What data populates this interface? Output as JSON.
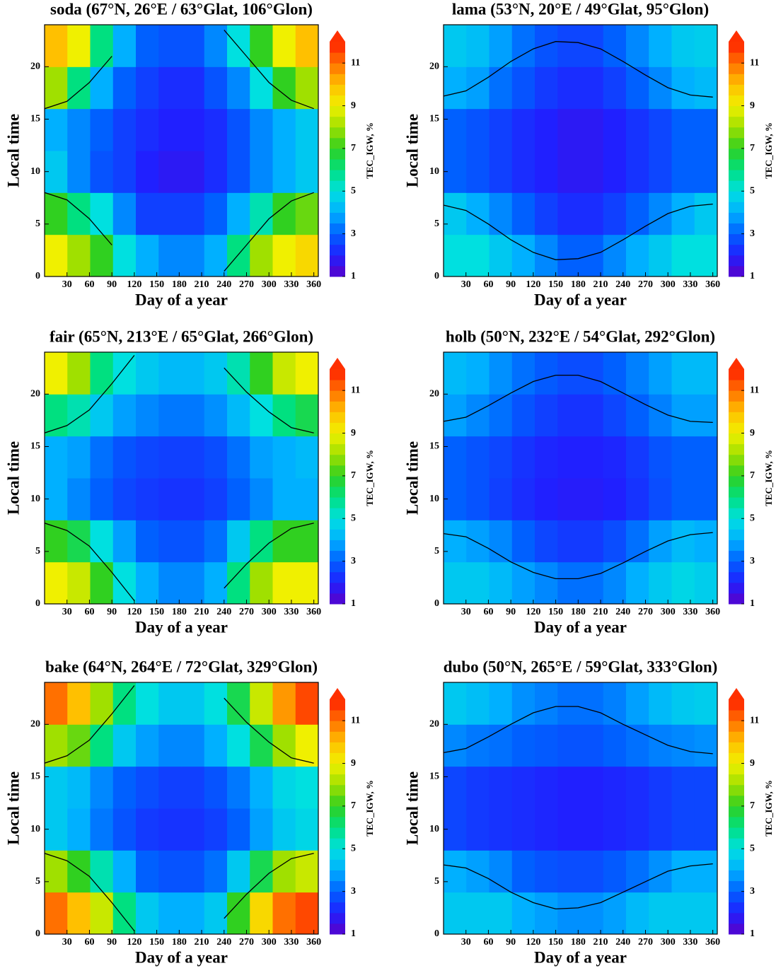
{
  "chart_data": [
    {
      "type": "heatmap",
      "title": "soda (67°N, 26°E / 63°Glat, 106°Glon)",
      "xlabel": "Day of a year",
      "ylabel": "Local time",
      "colorbar_label": "TEC_IGW, %",
      "xlim": [
        0,
        366
      ],
      "ylim": [
        0,
        24
      ],
      "xticks": [
        30,
        60,
        90,
        120,
        150,
        180,
        210,
        240,
        270,
        300,
        330,
        360
      ],
      "yticks": [
        0,
        5,
        10,
        15,
        20
      ],
      "xbins": [
        0,
        30.5,
        61,
        91.5,
        122,
        152.5,
        183,
        213.5,
        244,
        274.5,
        305,
        335.5,
        366
      ],
      "ybins": [
        0,
        4,
        8,
        12,
        16,
        20,
        24
      ],
      "values": [
        [
          9,
          8,
          7,
          5,
          4,
          3.5,
          3.5,
          4,
          6,
          8,
          9,
          9.5
        ],
        [
          7,
          6,
          5,
          3.5,
          2.5,
          2.5,
          2.5,
          3,
          4,
          5.5,
          7,
          7.5
        ],
        [
          4.5,
          3.5,
          2.8,
          2.5,
          2,
          1.8,
          1.8,
          2.2,
          2.8,
          3.5,
          4,
          4.5
        ],
        [
          4,
          3.5,
          3,
          2.5,
          2.2,
          2,
          2,
          2.2,
          2.8,
          3.5,
          4,
          4.5
        ],
        [
          8,
          6,
          4,
          3,
          2.5,
          2.2,
          2.2,
          2.8,
          3.5,
          5,
          7,
          8
        ],
        [
          10,
          9,
          6,
          4,
          3,
          2.8,
          2.8,
          3.5,
          5,
          7,
          9,
          10
        ]
      ],
      "clim": [
        1,
        12
      ],
      "cticks": [
        1,
        3,
        5,
        7,
        9,
        11
      ],
      "colormap": [
        "#5a00c8",
        "#2020ff",
        "#0060ff",
        "#00b0ff",
        "#00e0e0",
        "#00e080",
        "#30d020",
        "#a0e000",
        "#f0f000",
        "#ffc000",
        "#ff7000",
        "#ff2000"
      ],
      "extend_color": "#ff3000",
      "curve_x": [
        0,
        30,
        60,
        90,
        120,
        150,
        180,
        210,
        240,
        270,
        300,
        330,
        360
      ],
      "curves": [
        {
          "color": "#000000",
          "values": [
            8,
            7.3,
            5.5,
            3,
            null,
            null,
            null,
            null,
            0.5,
            3,
            5.5,
            7.2,
            8
          ]
        },
        {
          "color": "#000000",
          "values": [
            16,
            16.7,
            18.5,
            21,
            null,
            null,
            null,
            null,
            23.5,
            21,
            18.5,
            16.8,
            16
          ]
        }
      ]
    },
    {
      "type": "heatmap",
      "title": "lama (53°N, 20°E / 49°Glat, 95°Glon)",
      "xlabel": "Day of a year",
      "ylabel": "Local time",
      "colorbar_label": "TEC_IGW, %",
      "xlim": [
        0,
        366
      ],
      "ylim": [
        0,
        24
      ],
      "xticks": [
        30,
        60,
        90,
        120,
        150,
        180,
        210,
        240,
        270,
        300,
        330,
        360
      ],
      "yticks": [
        0,
        5,
        10,
        15,
        20
      ],
      "xbins": [
        0,
        30.5,
        61,
        91.5,
        122,
        152.5,
        183,
        213.5,
        244,
        274.5,
        305,
        335.5,
        366
      ],
      "ybins": [
        0,
        4,
        8,
        12,
        16,
        20,
        24
      ],
      "values": [
        [
          5,
          5,
          4.5,
          4,
          3.5,
          3,
          3,
          3.5,
          4,
          4.5,
          5,
          5
        ],
        [
          4.5,
          4,
          3.5,
          3,
          2.5,
          2.2,
          2.2,
          2.5,
          3,
          3.5,
          4,
          4.5
        ],
        [
          3,
          2.8,
          2.5,
          2.2,
          2,
          1.8,
          1.8,
          2,
          2.3,
          2.6,
          3,
          3
        ],
        [
          3,
          2.8,
          2.5,
          2.2,
          2,
          1.8,
          1.8,
          2,
          2.3,
          2.6,
          3,
          3
        ],
        [
          4,
          3.8,
          3.2,
          2.8,
          2.4,
          2.2,
          2.2,
          2.5,
          3,
          3.5,
          4,
          4.2
        ],
        [
          4.5,
          4.3,
          3.8,
          3.2,
          2.8,
          2.6,
          2.6,
          3,
          3.5,
          4,
          4.5,
          4.6
        ]
      ],
      "clim": [
        1,
        12
      ],
      "cticks": [
        1,
        3,
        5,
        7,
        9,
        11
      ],
      "colormap": [
        "#5a00c8",
        "#2020ff",
        "#0060ff",
        "#00b0ff",
        "#00e0e0",
        "#00e080",
        "#30d020",
        "#a0e000",
        "#f0f000",
        "#ffc000",
        "#ff7000",
        "#ff2000"
      ],
      "extend_color": "#ff3000",
      "curve_x": [
        0,
        30,
        60,
        90,
        120,
        150,
        180,
        210,
        240,
        270,
        300,
        330,
        360
      ],
      "curves": [
        {
          "color": "#000000",
          "values": [
            6.8,
            6.3,
            5,
            3.5,
            2.3,
            1.6,
            1.7,
            2.3,
            3.5,
            4.8,
            6,
            6.7,
            6.9
          ]
        },
        {
          "color": "#000000",
          "values": [
            17.2,
            17.7,
            19,
            20.5,
            21.7,
            22.4,
            22.3,
            21.7,
            20.5,
            19.2,
            18,
            17.3,
            17.1
          ]
        }
      ]
    },
    {
      "type": "heatmap",
      "title": "fair (65°N, 213°E / 65°Glat, 266°Glon)",
      "xlabel": "Day of a year",
      "ylabel": "Local time",
      "colorbar_label": "TEC_IGW, %",
      "xlim": [
        0,
        366
      ],
      "ylim": [
        0,
        24
      ],
      "xticks": [
        30,
        60,
        90,
        120,
        150,
        180,
        210,
        240,
        270,
        300,
        330,
        360
      ],
      "yticks": [
        0,
        5,
        10,
        15,
        20
      ],
      "xbins": [
        0,
        30.5,
        61,
        91.5,
        122,
        152.5,
        183,
        213.5,
        244,
        274.5,
        305,
        335.5,
        366
      ],
      "ybins": [
        0,
        4,
        8,
        12,
        16,
        20,
        24
      ],
      "values": [
        [
          9,
          8.5,
          7,
          5,
          4,
          3.5,
          3.5,
          4,
          6,
          8,
          9,
          9
        ],
        [
          7,
          6.5,
          5,
          3.8,
          3,
          2.8,
          2.8,
          3.2,
          4.5,
          6,
          7,
          7
        ],
        [
          4,
          3.5,
          3,
          2.6,
          2.4,
          2.3,
          2.3,
          2.5,
          3,
          3.5,
          4,
          4
        ],
        [
          4,
          3.8,
          3.2,
          2.8,
          2.6,
          2.5,
          2.5,
          2.7,
          3.2,
          3.8,
          4,
          4.2
        ],
        [
          6,
          5.5,
          4.5,
          3.8,
          3.5,
          3.3,
          3.3,
          3.6,
          4.2,
          5,
          6,
          6.5
        ],
        [
          9,
          8,
          6,
          5,
          4.5,
          4.2,
          4.2,
          4.5,
          5.5,
          7,
          8.5,
          9
        ]
      ],
      "clim": [
        1,
        12
      ],
      "cticks": [
        1,
        3,
        5,
        7,
        9,
        11
      ],
      "colormap": [
        "#5a00c8",
        "#2020ff",
        "#0060ff",
        "#00b0ff",
        "#00e0e0",
        "#00e080",
        "#30d020",
        "#a0e000",
        "#f0f000",
        "#ffc000",
        "#ff7000",
        "#ff2000"
      ],
      "extend_color": "#ff3000",
      "curve_x": [
        0,
        30,
        60,
        90,
        120,
        150,
        180,
        210,
        240,
        270,
        300,
        330,
        360
      ],
      "curves": [
        {
          "color": "#000000",
          "values": [
            7.7,
            7,
            5.5,
            3,
            0.3,
            null,
            null,
            null,
            1.5,
            3.8,
            5.8,
            7.2,
            7.7
          ]
        },
        {
          "color": "#000000",
          "values": [
            16.3,
            17,
            18.5,
            21,
            23.7,
            null,
            null,
            null,
            22.5,
            20.2,
            18.3,
            16.8,
            16.3
          ]
        }
      ]
    },
    {
      "type": "heatmap",
      "title": "holb (50°N, 232°E / 54°Glat, 292°Glon)",
      "xlabel": "Day of a year",
      "ylabel": "Local time",
      "colorbar_label": "TEC_IGW, %",
      "xlim": [
        0,
        366
      ],
      "ylim": [
        0,
        24
      ],
      "xticks": [
        30,
        60,
        90,
        120,
        150,
        180,
        210,
        240,
        270,
        300,
        330,
        360
      ],
      "yticks": [
        0,
        5,
        10,
        15,
        20
      ],
      "xbins": [
        0,
        30.5,
        61,
        91.5,
        122,
        152.5,
        183,
        213.5,
        244,
        274.5,
        305,
        335.5,
        366
      ],
      "ybins": [
        0,
        4,
        8,
        12,
        16,
        20,
        24
      ],
      "values": [
        [
          4.5,
          4.5,
          4.2,
          3.8,
          3.5,
          3.2,
          3.2,
          3.5,
          4,
          4.5,
          4.8,
          4.6
        ],
        [
          4,
          3.8,
          3.5,
          3,
          2.6,
          2.4,
          2.4,
          2.7,
          3.2,
          3.8,
          4.2,
          4
        ],
        [
          3,
          2.8,
          2.5,
          2.2,
          2,
          1.9,
          1.9,
          2,
          2.3,
          2.7,
          3,
          3
        ],
        [
          3,
          2.8,
          2.6,
          2.3,
          2.1,
          2,
          2,
          2.1,
          2.4,
          2.8,
          3,
          3
        ],
        [
          3.8,
          3.5,
          3.2,
          2.8,
          2.5,
          2.3,
          2.3,
          2.6,
          3,
          3.4,
          3.8,
          3.8
        ],
        [
          4.2,
          4,
          3.6,
          3.2,
          2.9,
          2.7,
          2.7,
          3,
          3.4,
          3.8,
          4.2,
          4.2
        ]
      ],
      "clim": [
        1,
        12
      ],
      "cticks": [
        1,
        3,
        5,
        7,
        9,
        11
      ],
      "colormap": [
        "#5a00c8",
        "#2020ff",
        "#0060ff",
        "#00b0ff",
        "#00e0e0",
        "#00e080",
        "#30d020",
        "#a0e000",
        "#f0f000",
        "#ffc000",
        "#ff7000",
        "#ff2000"
      ],
      "extend_color": "#ff3000",
      "curve_x": [
        0,
        30,
        60,
        90,
        120,
        150,
        180,
        210,
        240,
        270,
        300,
        330,
        360
      ],
      "curves": [
        {
          "color": "#000000",
          "values": [
            6.7,
            6.4,
            5.3,
            4,
            3,
            2.4,
            2.4,
            2.9,
            3.9,
            5,
            6,
            6.6,
            6.8
          ]
        },
        {
          "color": "#000000",
          "values": [
            17.4,
            17.8,
            18.9,
            20.1,
            21.2,
            21.8,
            21.8,
            21.2,
            20.1,
            19,
            18,
            17.4,
            17.3
          ]
        }
      ]
    },
    {
      "type": "heatmap",
      "title": "bake (64°N, 264°E / 72°Glat, 329°Glon)",
      "xlabel": "Day of a year",
      "ylabel": "Local time",
      "colorbar_label": "TEC_IGW, %",
      "xlim": [
        0,
        366
      ],
      "ylim": [
        0,
        24
      ],
      "xticks": [
        30,
        60,
        90,
        120,
        150,
        180,
        210,
        240,
        270,
        300,
        330,
        360
      ],
      "yticks": [
        0,
        5,
        10,
        15,
        20
      ],
      "xbins": [
        0,
        30.5,
        61,
        91.5,
        122,
        152.5,
        183,
        213.5,
        244,
        274.5,
        305,
        335.5,
        366
      ],
      "ybins": [
        0,
        4,
        8,
        12,
        16,
        20,
        24
      ],
      "values": [
        [
          11,
          10,
          8.5,
          6,
          4.5,
          4,
          4,
          4.5,
          7,
          9.5,
          11,
          11.5
        ],
        [
          8,
          7,
          5.5,
          4,
          3,
          2.8,
          2.8,
          3.2,
          4.5,
          6.5,
          8,
          8.5
        ],
        [
          4.5,
          4,
          3.3,
          2.8,
          2.4,
          2.3,
          2.3,
          2.5,
          3,
          3.8,
          4.5,
          4.8
        ],
        [
          4.5,
          4.2,
          3.5,
          3,
          2.7,
          2.5,
          2.5,
          2.8,
          3.3,
          4,
          4.8,
          5
        ],
        [
          8,
          7.5,
          6,
          4.5,
          3.8,
          3.5,
          3.5,
          4,
          5,
          6.5,
          8,
          9
        ],
        [
          11,
          10,
          8,
          6,
          5,
          4.5,
          4.5,
          5,
          6.5,
          8.5,
          10.5,
          11.5
        ]
      ],
      "clim": [
        1,
        12
      ],
      "cticks": [
        1,
        3,
        5,
        7,
        9,
        11
      ],
      "colormap": [
        "#5a00c8",
        "#2020ff",
        "#0060ff",
        "#00b0ff",
        "#00e0e0",
        "#00e080",
        "#30d020",
        "#a0e000",
        "#f0f000",
        "#ffc000",
        "#ff7000",
        "#ff2000"
      ],
      "extend_color": "#ff3000",
      "curve_x": [
        0,
        30,
        60,
        90,
        120,
        150,
        180,
        210,
        240,
        270,
        300,
        330,
        360
      ],
      "curves": [
        {
          "color": "#000000",
          "values": [
            7.7,
            7,
            5.5,
            3,
            0.3,
            null,
            null,
            null,
            1.5,
            3.8,
            5.8,
            7.2,
            7.7
          ]
        },
        {
          "color": "#000000",
          "values": [
            16.3,
            17,
            18.5,
            21,
            23.7,
            null,
            null,
            null,
            22.5,
            20.2,
            18.3,
            16.8,
            16.3
          ]
        }
      ]
    },
    {
      "type": "heatmap",
      "title": "dubo (50°N, 265°E / 59°Glat, 333°Glon)",
      "xlabel": "Day of a year",
      "ylabel": "Local time",
      "colorbar_label": "TEC_IGW, %",
      "xlim": [
        0,
        366
      ],
      "ylim": [
        0,
        24
      ],
      "xticks": [
        30,
        60,
        90,
        120,
        150,
        180,
        210,
        240,
        270,
        300,
        330,
        360
      ],
      "yticks": [
        0,
        5,
        10,
        15,
        20
      ],
      "xbins": [
        0,
        30.5,
        61,
        91.5,
        122,
        152.5,
        183,
        213.5,
        244,
        274.5,
        305,
        335.5,
        366
      ],
      "ybins": [
        0,
        4,
        8,
        12,
        16,
        20,
        24
      ],
      "values": [
        [
          4.5,
          4.5,
          4.5,
          4,
          3.8,
          3.6,
          3.6,
          3.8,
          4.2,
          4.5,
          4.5,
          4.5
        ],
        [
          4,
          3.8,
          3.5,
          3,
          2.8,
          2.7,
          2.7,
          2.9,
          3.2,
          3.6,
          4,
          4
        ],
        [
          2.6,
          2.4,
          2.3,
          2.2,
          2.1,
          2,
          2,
          2.1,
          2.2,
          2.4,
          2.6,
          2.6
        ],
        [
          2.6,
          2.4,
          2.3,
          2.2,
          2.1,
          2,
          2,
          2.1,
          2.2,
          2.4,
          2.6,
          2.6
        ],
        [
          3.5,
          3.3,
          3.2,
          3,
          2.9,
          2.8,
          2.8,
          3,
          3.2,
          3.4,
          3.5,
          3.6
        ],
        [
          4.5,
          4.3,
          4,
          3.6,
          3.4,
          3.2,
          3.2,
          3.4,
          3.8,
          4.2,
          4.5,
          4.6
        ]
      ],
      "clim": [
        1,
        12
      ],
      "cticks": [
        1,
        3,
        5,
        7,
        9,
        11
      ],
      "colormap": [
        "#5a00c8",
        "#2020ff",
        "#0060ff",
        "#00b0ff",
        "#00e0e0",
        "#00e080",
        "#30d020",
        "#a0e000",
        "#f0f000",
        "#ffc000",
        "#ff7000",
        "#ff2000"
      ],
      "extend_color": "#ff3000",
      "curve_x": [
        0,
        30,
        60,
        90,
        120,
        150,
        180,
        210,
        240,
        270,
        300,
        330,
        360
      ],
      "curves": [
        {
          "color": "#000000",
          "values": [
            6.6,
            6.3,
            5.3,
            4,
            3,
            2.4,
            2.5,
            3,
            4,
            5,
            6,
            6.5,
            6.7
          ]
        },
        {
          "color": "#000000",
          "values": [
            17.3,
            17.7,
            18.8,
            20,
            21.1,
            21.7,
            21.7,
            21.1,
            20,
            19,
            18,
            17.4,
            17.2
          ]
        }
      ]
    }
  ]
}
